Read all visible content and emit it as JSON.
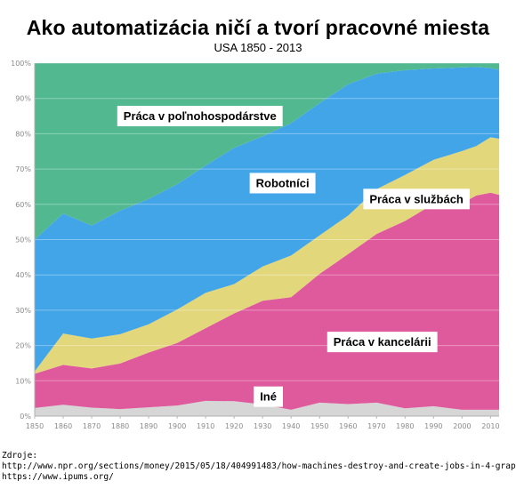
{
  "chart_data": {
    "type": "area",
    "stacked": true,
    "title": "Ako automatizácia ničí a tvorí pracovné miesta",
    "subtitle": "USA 1850 - 2013",
    "x": [
      1850,
      1860,
      1870,
      1880,
      1890,
      1900,
      1910,
      1920,
      1930,
      1940,
      1950,
      1960,
      1970,
      1980,
      1990,
      2000,
      2005,
      2010,
      2013
    ],
    "x_ticks": [
      "1850",
      "1860",
      "1870",
      "1880",
      "1890",
      "1900",
      "1910",
      "1920",
      "1930",
      "1940",
      "1950",
      "1960",
      "1970",
      "1980",
      "1990",
      "2000",
      "2010"
    ],
    "y_ticks": [
      "0%",
      "10%",
      "20%",
      "30%",
      "40%",
      "50%",
      "60%",
      "70%",
      "80%",
      "90%",
      "100%"
    ],
    "ylim": [
      0,
      100
    ],
    "grid": true,
    "series": [
      {
        "name": "Iné",
        "color": "#d6d6d6",
        "values": [
          2.3,
          3.2,
          2.4,
          2.0,
          2.5,
          3.0,
          4.3,
          4.2,
          3.3,
          1.8,
          3.8,
          3.4,
          3.8,
          2.2,
          2.8,
          1.8,
          1.8,
          1.8,
          1.8
        ]
      },
      {
        "name": "Práca v kancelárii",
        "color": "#df5a9d",
        "values": [
          9.7,
          11.3,
          11.1,
          12.9,
          15.5,
          17.7,
          20.6,
          24.9,
          29.4,
          31.9,
          36.5,
          42.5,
          47.8,
          53.1,
          57.3,
          58.5,
          60.7,
          61.5,
          60.9
        ]
      },
      {
        "name": "Práca v službách",
        "color": "#e3d77c",
        "values": [
          0.7,
          8.9,
          8.5,
          8.3,
          8.0,
          9.5,
          10.0,
          8.3,
          9.7,
          11.8,
          10.9,
          10.9,
          12.7,
          13.0,
          12.5,
          14.8,
          14.0,
          15.7,
          15.9
        ]
      },
      {
        "name": "Robotníci",
        "color": "#42a5e8",
        "values": [
          37.3,
          34.0,
          32.0,
          35.0,
          35.5,
          35.5,
          36.1,
          38.6,
          36.9,
          37.5,
          37.5,
          37.2,
          32.7,
          29.7,
          25.9,
          23.7,
          22.4,
          19.6,
          19.5
        ]
      },
      {
        "name": "Práca v poľnohospodárstve",
        "color": "#52b890",
        "values": [
          50.0,
          42.6,
          46.0,
          41.8,
          38.5,
          34.3,
          29.0,
          24.0,
          20.7,
          17.0,
          11.3,
          6.0,
          3.0,
          2.0,
          1.5,
          1.2,
          1.1,
          1.4,
          1.9
        ]
      }
    ],
    "labels": [
      {
        "series": "Práca v poľnohospodárstve",
        "text": "Práca v poľnohospodárstve",
        "at": [
          1908,
          85
        ]
      },
      {
        "series": "Robotníci",
        "text": "Robotníci",
        "at": [
          1937,
          66
        ]
      },
      {
        "series": "Práca v službách",
        "text": "Práca v službách",
        "at": [
          1984,
          61.5
        ]
      },
      {
        "series": "Práca v kancelárii",
        "text": "Práca v kancelárii",
        "at": [
          1972,
          21
        ]
      },
      {
        "series": "Iné",
        "text": "Iné",
        "at": [
          1932,
          5.5
        ]
      }
    ]
  },
  "sources": {
    "heading": "Zdroje:",
    "lines": [
      "http://www.npr.org/sections/money/2015/05/18/404991483/how-machines-destroy-and-create-jobs-in-4-graphs",
      "https://www.ipums.org/"
    ]
  }
}
